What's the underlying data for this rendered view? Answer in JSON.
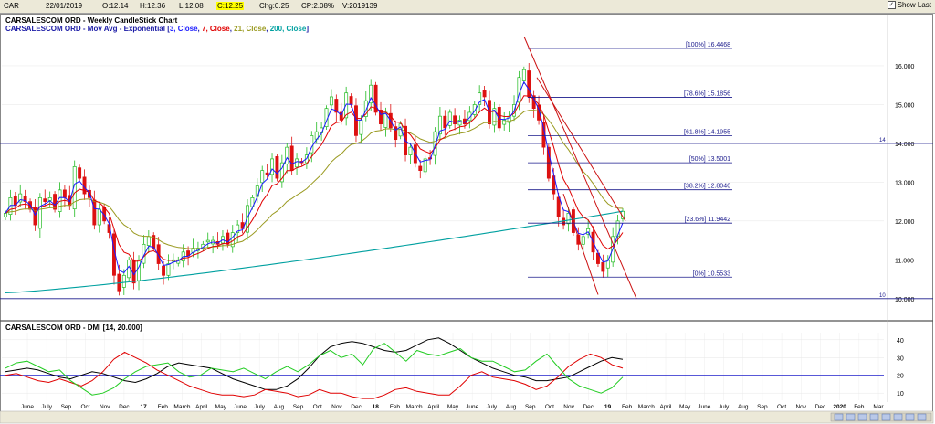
{
  "toolbar": {
    "symbol": "CAR",
    "date": "22/01/2019",
    "open": "O:12.14",
    "high": "H:12.36",
    "low": "L:12.08",
    "close": "C:12.25",
    "change": "Chg:0.25",
    "change_pct": "CP:2.08%",
    "volume": "V:2019139",
    "show_last_label": "Show Last",
    "show_last_checked": "✓"
  },
  "chart_title": "CARSALESCOM ORD - Weekly CandleStick Chart",
  "ma_legend": {
    "prefix": "CARSALESCOM ORD - Mov Avg - Exponential [",
    "p3": "3, Close",
    "p7": "7, Close",
    "p21": "21, Close",
    "p200": "200, Close",
    "suffix": "]",
    "colors": {
      "p3": "#1a1aff",
      "p7": "#e00000",
      "p21": "#9a9a20",
      "p200": "#00a0a0"
    }
  },
  "dmi_title": "CARSALESCOM ORD - DMI [14, 20.000]",
  "chart_data": [
    {
      "type": "candlestick",
      "title": "CARSALESCOM ORD - Weekly CandleStick Chart",
      "ylim": [
        9.5,
        16.8
      ],
      "yticks": [
        "10.000",
        "11.000",
        "12.000",
        "13.000",
        "14.000",
        "15.000",
        "16.000"
      ],
      "yvalues": [
        10,
        11,
        12,
        13,
        14,
        15,
        16
      ],
      "x_tick_labels": [
        "June",
        "July",
        "Sep",
        "Oct",
        "Nov",
        "Dec",
        "17",
        "Feb",
        "March",
        "April",
        "May",
        "June",
        "July",
        "Aug",
        "Sep",
        "Oct",
        "Nov",
        "Dec",
        "18",
        "Feb",
        "March",
        "April",
        "May",
        "June",
        "July",
        "Aug",
        "Sep",
        "Oct",
        "Nov",
        "Dec",
        "19",
        "Feb",
        "March",
        "April",
        "May",
        "June",
        "July",
        "Aug",
        "Sep",
        "Oct",
        "Nov",
        "Dec",
        "2020",
        "Feb",
        "Mar"
      ],
      "closes": [
        12.2,
        12.6,
        12.4,
        12.7,
        12.5,
        12.3,
        11.9,
        12.6,
        12.5,
        12.6,
        12.3,
        12.8,
        12.6,
        12.4,
        13.4,
        13.1,
        12.7,
        12.6,
        11.9,
        12.3,
        12.0,
        11.7,
        10.6,
        10.2,
        10.6,
        11.0,
        10.4,
        11.0,
        11.4,
        11.6,
        11.3,
        10.9,
        10.6,
        10.9,
        11.0,
        11.0,
        11.2,
        11.1,
        11.3,
        11.3,
        11.4,
        11.5,
        11.5,
        11.4,
        11.6,
        11.4,
        11.7,
        11.9,
        11.8,
        12.4,
        12.6,
        12.9,
        13.3,
        13.2,
        13.6,
        13.1,
        13.5,
        13.9,
        13.3,
        13.6,
        13.5,
        13.7,
        14.2,
        14.3,
        14.4,
        14.9,
        15.2,
        14.8,
        14.6,
        15.3,
        15.0,
        14.2,
        14.6,
        15.1,
        15.5,
        14.8,
        14.5,
        14.8,
        14.4,
        14.1,
        14.5,
        13.7,
        13.9,
        13.5,
        13.3,
        13.6,
        13.6,
        14.3,
        14.7,
        14.4,
        14.8,
        14.5,
        14.6,
        14.5,
        14.8,
        15.0,
        15.3,
        15.2,
        14.5,
        14.9,
        14.4,
        14.6,
        14.7,
        15.0,
        15.7,
        15.9,
        15.2,
        14.9,
        14.6,
        13.9,
        13.1,
        12.7,
        12.1,
        11.9,
        12.2,
        11.7,
        11.4,
        11.6,
        11.8,
        11.2,
        10.9,
        10.7,
        11.0,
        11.6,
        12.0,
        12.25
      ],
      "fibonacci": {
        "levels": [
          {
            "label": "[100%] 16.4468",
            "value": 16.4468
          },
          {
            "label": "[78.6%] 15.1856",
            "value": 15.1856
          },
          {
            "label": "[61.8%] 14.1955",
            "value": 14.1955
          },
          {
            "label": "[50%] 13.5001",
            "value": 13.5001
          },
          {
            "label": "[38.2%] 12.8046",
            "value": 12.8046
          },
          {
            "label": "[23.6%] 11.9442",
            "value": 11.9442
          },
          {
            "label": "[0%] 10.5533",
            "value": 10.5533
          }
        ],
        "color": "#1a1a8c"
      },
      "horizontal_lines": [
        {
          "value": 14,
          "label": "14"
        },
        {
          "value": 10,
          "label": "10"
        }
      ]
    },
    {
      "type": "line",
      "title": "CARSALESCOM ORD - DMI [14, 20.000]",
      "ylim": [
        6,
        44
      ],
      "yticks": [
        "10",
        "20",
        "30",
        "40"
      ],
      "yvalues": [
        10,
        20,
        30,
        40
      ],
      "threshold": 20,
      "series": [
        {
          "color": "#000000",
          "values": [
            22,
            23,
            24,
            23,
            21,
            19,
            18,
            20,
            22,
            21,
            19,
            17,
            16,
            18,
            21,
            25,
            27,
            26,
            25,
            24,
            21,
            18,
            16,
            14,
            12,
            12,
            14,
            18,
            24,
            31,
            36,
            38,
            39,
            38,
            36,
            34,
            33,
            34,
            37,
            40,
            41,
            38,
            34,
            30,
            27,
            24,
            22,
            20,
            19,
            17,
            17,
            18,
            19,
            22,
            25,
            28,
            30,
            29
          ]
        },
        {
          "color": "#e00000",
          "values": [
            20,
            21,
            19,
            17,
            16,
            18,
            16,
            14,
            17,
            22,
            29,
            33,
            30,
            27,
            23,
            20,
            17,
            14,
            12,
            10,
            9,
            9,
            8,
            9,
            12,
            11,
            10,
            8,
            9,
            12,
            10,
            10,
            8,
            7,
            7,
            9,
            12,
            13,
            11,
            10,
            9,
            9,
            14,
            20,
            22,
            19,
            18,
            17,
            15,
            12,
            14,
            19,
            25,
            29,
            32,
            30,
            26,
            24
          ]
        },
        {
          "color": "#22cc22",
          "values": [
            24,
            27,
            28,
            25,
            22,
            23,
            17,
            13,
            9,
            10,
            13,
            18,
            22,
            25,
            26,
            27,
            22,
            19,
            20,
            24,
            23,
            22,
            24,
            21,
            18,
            22,
            25,
            22,
            26,
            31,
            34,
            30,
            32,
            26,
            35,
            38,
            33,
            28,
            34,
            32,
            31,
            33,
            35,
            30,
            28,
            28,
            25,
            22,
            23,
            28,
            32,
            25,
            18,
            14,
            12,
            10,
            13,
            19
          ]
        }
      ]
    }
  ]
}
